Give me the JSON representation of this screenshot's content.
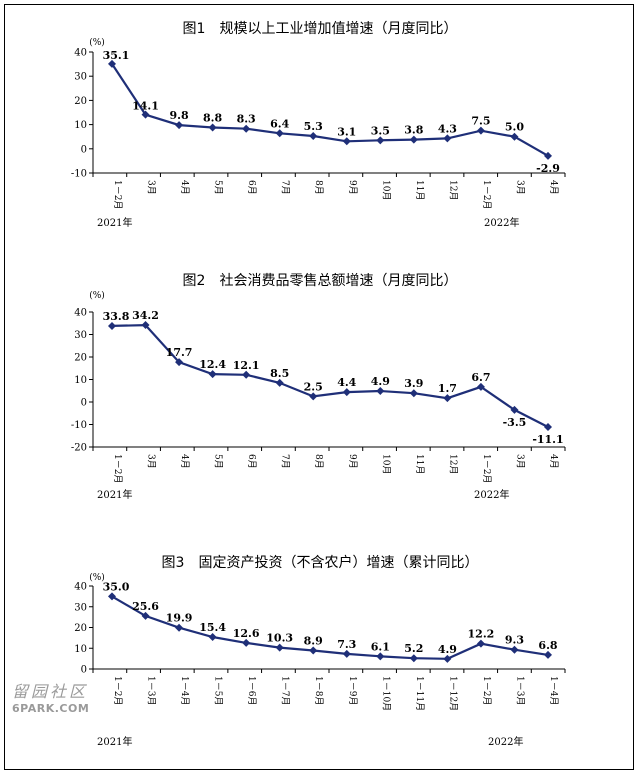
{
  "colors": {
    "line": "#1f2f78",
    "axis": "#000000",
    "watermark": "#9a9a9a"
  },
  "chart_data": [
    {
      "type": "line",
      "title": "图1　规模以上工业增加值增速（月度同比）",
      "unit": "(%)",
      "categories": [
        "1－2月",
        "3月",
        "4月",
        "5月",
        "6月",
        "7月",
        "8月",
        "9月",
        "10月",
        "11月",
        "12月",
        "1－2月",
        "3月",
        "4月"
      ],
      "values": [
        35.1,
        14.1,
        9.8,
        8.8,
        8.3,
        6.4,
        5.3,
        3.1,
        3.5,
        3.8,
        4.3,
        7.5,
        5.0,
        -2.9
      ],
      "data_labels": [
        "35.1",
        "14.1",
        "9.8",
        "8.8",
        "8.3",
        "6.4",
        "5.3",
        "3.1",
        "3.5",
        "3.8",
        "4.3",
        "7.5",
        "5.0",
        "-2.9"
      ],
      "ylim": [
        -10,
        40
      ],
      "yticks": [
        "40",
        "30",
        "20",
        "10",
        "0",
        "-10"
      ],
      "years": [
        "2021年",
        "2022年"
      ],
      "grid": false
    },
    {
      "type": "line",
      "title": "图2　社会消费品零售总额增速（月度同比）",
      "unit": "(%)",
      "categories": [
        "1－2月",
        "3月",
        "4月",
        "5月",
        "6月",
        "7月",
        "8月",
        "9月",
        "10月",
        "11月",
        "12月",
        "1－2月",
        "3月",
        "4月"
      ],
      "values": [
        33.8,
        34.2,
        17.7,
        12.4,
        12.1,
        8.5,
        2.5,
        4.4,
        4.9,
        3.9,
        1.7,
        6.7,
        -3.5,
        -11.1
      ],
      "data_labels": [
        "33.8",
        "34.2",
        "17.7",
        "12.4",
        "12.1",
        "8.5",
        "2.5",
        "4.4",
        "4.9",
        "3.9",
        "1.7",
        "6.7",
        "-3.5",
        "-11.1"
      ],
      "ylim": [
        -20,
        40
      ],
      "yticks": [
        "40",
        "30",
        "20",
        "10",
        "0",
        "-10",
        "-20"
      ],
      "years": [
        "2021年",
        "2022年"
      ],
      "grid": false
    },
    {
      "type": "line",
      "title": "图3　固定资产投资（不含农户）增速（累计同比）",
      "unit": "(%)",
      "categories": [
        "1－2月",
        "1－3月",
        "1－4月",
        "1－5月",
        "1－6月",
        "1－7月",
        "1－8月",
        "1－9月",
        "1－10月",
        "1－11月",
        "1－12月",
        "1－2月",
        "1－3月",
        "1－4月"
      ],
      "values": [
        35.0,
        25.6,
        19.9,
        15.4,
        12.6,
        10.3,
        8.9,
        7.3,
        6.1,
        5.2,
        4.9,
        12.2,
        9.3,
        6.8
      ],
      "data_labels": [
        "35.0",
        "25.6",
        "19.9",
        "15.4",
        "12.6",
        "10.3",
        "8.9",
        "7.3",
        "6.1",
        "5.2",
        "4.9",
        "12.2",
        "9.3",
        "6.8"
      ],
      "ylim": [
        0,
        40
      ],
      "yticks": [
        "40",
        "30",
        "20",
        "10",
        "0"
      ],
      "years": [
        "2021年",
        "2022年"
      ],
      "grid": false
    }
  ],
  "watermark": {
    "chinese": "留园社区",
    "english": "6PARK.COM"
  }
}
